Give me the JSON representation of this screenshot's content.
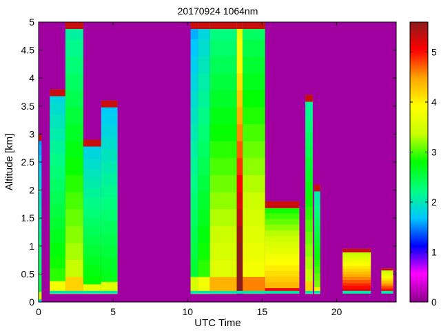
{
  "chart_data": {
    "type": "heatmap",
    "title": "20170924 1064nm",
    "xlabel": "UTC Time",
    "ylabel": "Altitude [km]",
    "xlim": [
      0,
      24
    ],
    "ylim": [
      0,
      5
    ],
    "xticks": [
      0,
      5,
      10,
      15,
      20
    ],
    "yticks": [
      0,
      0.5,
      1,
      1.5,
      2,
      2.5,
      3,
      3.5,
      4,
      4.5,
      5
    ],
    "colorbar": {
      "range": [
        0,
        5.6
      ],
      "ticks": [
        0,
        1,
        2,
        3,
        4,
        5
      ],
      "colormap": [
        "#8a008a",
        "#ff00ff",
        "#0000ff",
        "#00c8ff",
        "#00ff80",
        "#00ff00",
        "#c8ff00",
        "#ffff00",
        "#ffa500",
        "#ff0000",
        "#8b1a1a"
      ]
    },
    "background_value": 0.1,
    "observation_segments": [
      {
        "t_start": 0.0,
        "t_end": 0.2,
        "ground": 0.0,
        "top": 3.0,
        "level": 2.2
      },
      {
        "t_start": 0.75,
        "t_end": 1.8,
        "ground": 0.15,
        "top": 3.8,
        "level": 2.6
      },
      {
        "t_start": 1.8,
        "t_end": 3.0,
        "ground": 0.15,
        "top": 5.0,
        "level": 3.0
      },
      {
        "t_start": 3.0,
        "t_end": 4.2,
        "ground": 0.15,
        "top": 2.9,
        "level": 2.5
      },
      {
        "t_start": 4.2,
        "t_end": 5.3,
        "ground": 0.15,
        "top": 3.6,
        "level": 2.4
      },
      {
        "t_start": 10.2,
        "t_end": 10.7,
        "ground": 0.15,
        "top": 5.0,
        "level": 2.3
      },
      {
        "t_start": 10.7,
        "t_end": 11.5,
        "ground": 0.15,
        "top": 5.0,
        "level": 2.6
      },
      {
        "t_start": 11.5,
        "t_end": 13.3,
        "ground": 0.15,
        "top": 5.0,
        "level": 3.2
      },
      {
        "t_start": 13.3,
        "t_end": 13.7,
        "ground": 0.15,
        "top": 5.0,
        "level": 5.2
      },
      {
        "t_start": 13.7,
        "t_end": 15.2,
        "ground": 0.15,
        "top": 5.0,
        "level": 3.4
      },
      {
        "t_start": 15.2,
        "t_end": 17.5,
        "ground": 0.15,
        "top": 1.8,
        "level": 3.9
      },
      {
        "t_start": 17.9,
        "t_end": 18.4,
        "ground": 0.15,
        "top": 3.7,
        "level": 3.0
      },
      {
        "t_start": 18.5,
        "t_end": 18.9,
        "ground": 0.15,
        "top": 2.1,
        "level": 2.8
      },
      {
        "t_start": 20.4,
        "t_end": 22.3,
        "ground": 0.15,
        "top": 0.95,
        "level": 4.6
      },
      {
        "t_start": 23.0,
        "t_end": 23.8,
        "ground": 0.15,
        "top": 0.6,
        "level": 4.6
      }
    ],
    "grid": false
  }
}
